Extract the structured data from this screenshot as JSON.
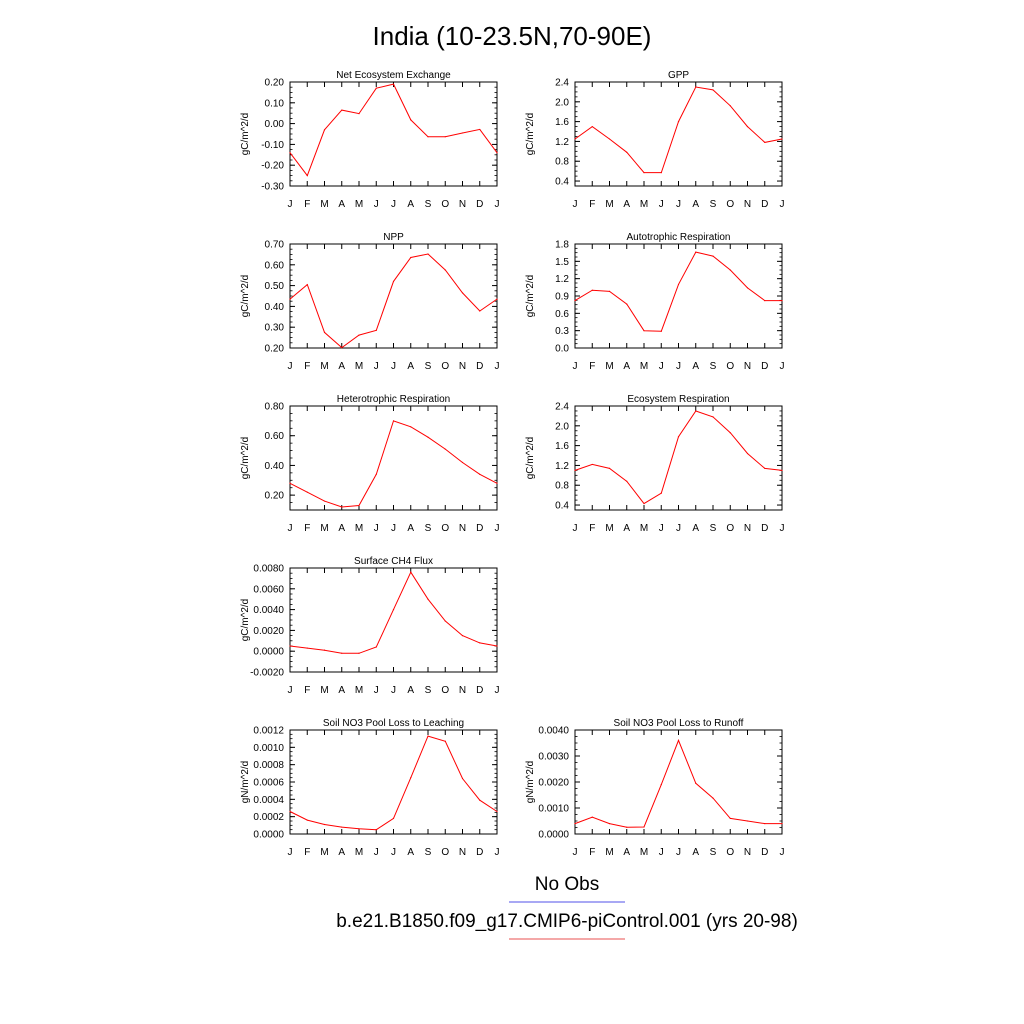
{
  "page_title": "India (10-23.5N,70-90E)",
  "legend": {
    "entries": [
      {
        "label": "No Obs",
        "color": "#8c8cf0"
      },
      {
        "label": "b.e21.B1850.f09_g17.CMIP6-piControl.001 (yrs 20-98)",
        "color": "#f08c8c"
      }
    ]
  },
  "series_color": "#ff0000",
  "chart_data": [
    {
      "type": "line",
      "title": "Net Ecosystem Exchange",
      "ylabel": "gC/m^2/d",
      "ylim": [
        -0.3,
        0.2
      ],
      "yticks": [
        "0.20",
        "0.10",
        "0.00",
        "-0.10",
        "-0.20",
        "-0.30"
      ],
      "ytick_values": [
        0.2,
        0.1,
        0.0,
        -0.1,
        -0.2,
        -0.3
      ],
      "xticks": [
        "J",
        "F",
        "M",
        "A",
        "M",
        "J",
        "J",
        "A",
        "S",
        "O",
        "N",
        "D",
        "J"
      ],
      "values": [
        -0.14,
        -0.25,
        -0.03,
        0.065,
        0.048,
        0.17,
        0.19,
        0.018,
        -0.063,
        -0.063,
        -0.045,
        -0.028,
        -0.14
      ]
    },
    {
      "type": "line",
      "title": "GPP",
      "ylabel": "gC/m^2/d",
      "ylim": [
        0.3,
        2.4
      ],
      "yticks": [
        "2.4",
        "2.0",
        "1.6",
        "1.2",
        "0.8",
        "0.4"
      ],
      "ytick_values": [
        2.4,
        2.0,
        1.6,
        1.2,
        0.8,
        0.4
      ],
      "xticks": [
        "J",
        "F",
        "M",
        "A",
        "M",
        "J",
        "J",
        "A",
        "S",
        "O",
        "N",
        "D",
        "J"
      ],
      "values": [
        1.25,
        1.5,
        1.25,
        0.98,
        0.57,
        0.57,
        1.6,
        2.3,
        2.24,
        1.92,
        1.5,
        1.18,
        1.25
      ]
    },
    {
      "type": "line",
      "title": "NPP",
      "ylabel": "gC/m^2/d",
      "ylim": [
        0.2,
        0.7
      ],
      "yticks": [
        "0.70",
        "0.60",
        "0.50",
        "0.40",
        "0.30",
        "0.20"
      ],
      "ytick_values": [
        0.7,
        0.6,
        0.5,
        0.4,
        0.3,
        0.2
      ],
      "xticks": [
        "J",
        "F",
        "M",
        "A",
        "M",
        "J",
        "J",
        "A",
        "S",
        "O",
        "N",
        "D",
        "J"
      ],
      "values": [
        0.435,
        0.505,
        0.275,
        0.202,
        0.262,
        0.285,
        0.52,
        0.635,
        0.652,
        0.575,
        0.465,
        0.378,
        0.435
      ]
    },
    {
      "type": "line",
      "title": "Autotrophic Respiration",
      "ylabel": "gC/m^2/d",
      "ylim": [
        0.0,
        1.8
      ],
      "yticks": [
        "1.8",
        "1.5",
        "1.2",
        "0.9",
        "0.6",
        "0.3",
        "0.0"
      ],
      "ytick_values": [
        1.8,
        1.5,
        1.2,
        0.9,
        0.6,
        0.3,
        0.0
      ],
      "xticks": [
        "J",
        "F",
        "M",
        "A",
        "M",
        "J",
        "J",
        "A",
        "S",
        "O",
        "N",
        "D",
        "J"
      ],
      "values": [
        0.82,
        1.0,
        0.98,
        0.76,
        0.3,
        0.29,
        1.1,
        1.66,
        1.59,
        1.35,
        1.04,
        0.82,
        0.82
      ]
    },
    {
      "type": "line",
      "title": "Heterotrophic Respiration",
      "ylabel": "gC/m^2/d",
      "ylim": [
        0.1,
        0.8
      ],
      "yticks": [
        "0.80",
        "0.60",
        "0.40",
        "0.20"
      ],
      "ytick_values": [
        0.8,
        0.6,
        0.4,
        0.2
      ],
      "xticks": [
        "J",
        "F",
        "M",
        "A",
        "M",
        "J",
        "J",
        "A",
        "S",
        "O",
        "N",
        "D",
        "J"
      ],
      "values": [
        0.28,
        0.22,
        0.16,
        0.12,
        0.13,
        0.34,
        0.7,
        0.66,
        0.59,
        0.51,
        0.42,
        0.34,
        0.28
      ]
    },
    {
      "type": "line",
      "title": "Ecosystem Respiration",
      "ylabel": "gC/m^2/d",
      "ylim": [
        0.3,
        2.4
      ],
      "yticks": [
        "2.4",
        "2.0",
        "1.6",
        "1.2",
        "0.8",
        "0.4"
      ],
      "ytick_values": [
        2.4,
        2.0,
        1.6,
        1.2,
        0.8,
        0.4
      ],
      "xticks": [
        "J",
        "F",
        "M",
        "A",
        "M",
        "J",
        "J",
        "A",
        "S",
        "O",
        "N",
        "D",
        "J"
      ],
      "values": [
        1.1,
        1.22,
        1.14,
        0.88,
        0.43,
        0.64,
        1.78,
        2.3,
        2.18,
        1.86,
        1.44,
        1.14,
        1.1
      ]
    },
    {
      "type": "line",
      "title": "Surface CH4 Flux",
      "ylabel": "gC/m^2/d",
      "ylim": [
        -0.002,
        0.008
      ],
      "yticks": [
        "0.0080",
        "0.0060",
        "0.0040",
        "0.0020",
        "0.0000",
        "-0.0020"
      ],
      "ytick_values": [
        0.008,
        0.006,
        0.004,
        0.002,
        0.0,
        -0.002
      ],
      "xticks": [
        "J",
        "F",
        "M",
        "A",
        "M",
        "J",
        "J",
        "A",
        "S",
        "O",
        "N",
        "D",
        "J"
      ],
      "values": [
        0.0005,
        0.0003,
        0.0001,
        -0.0002,
        -0.0002,
        0.0004,
        0.004,
        0.0076,
        0.005,
        0.0029,
        0.0015,
        0.0008,
        0.0005
      ]
    },
    {
      "type": "line",
      "title": "Soil NO3 Pool Loss to Leaching",
      "ylabel": "gN/m^2/d",
      "ylim": [
        0.0,
        0.0012
      ],
      "yticks": [
        "0.0012",
        "0.0010",
        "0.0008",
        "0.0006",
        "0.0004",
        "0.0002",
        "0.0000"
      ],
      "ytick_values": [
        0.0012,
        0.001,
        0.0008,
        0.0006,
        0.0004,
        0.0002,
        0.0
      ],
      "xticks": [
        "J",
        "F",
        "M",
        "A",
        "M",
        "J",
        "J",
        "A",
        "S",
        "O",
        "N",
        "D",
        "J"
      ],
      "values": [
        0.00026,
        0.00016,
        0.00011,
        8e-05,
        6e-05,
        5e-05,
        0.00018,
        0.00065,
        0.00113,
        0.00107,
        0.00064,
        0.00039,
        0.00026
      ]
    },
    {
      "type": "line",
      "title": "Soil NO3 Pool Loss to Runoff",
      "ylabel": "gN/m^2/d",
      "ylim": [
        0.0,
        0.004
      ],
      "yticks": [
        "0.0040",
        "0.0030",
        "0.0020",
        "0.0010",
        "0.0000"
      ],
      "ytick_values": [
        0.004,
        0.003,
        0.002,
        0.001,
        0.0
      ],
      "xticks": [
        "J",
        "F",
        "M",
        "A",
        "M",
        "J",
        "J",
        "A",
        "S",
        "O",
        "N",
        "D",
        "J"
      ],
      "values": [
        0.0004,
        0.00065,
        0.0004,
        0.00026,
        0.00027,
        0.0019,
        0.0036,
        0.00195,
        0.00138,
        0.0006,
        0.0005,
        0.0004,
        0.0004
      ]
    }
  ]
}
